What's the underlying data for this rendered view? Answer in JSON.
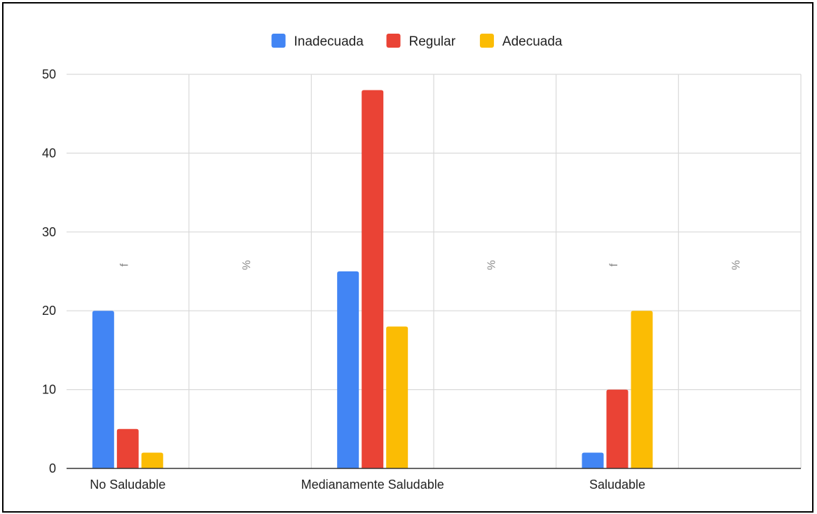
{
  "chart_data": {
    "type": "bar",
    "title": "",
    "xlabel": "",
    "ylabel": "",
    "ylim": [
      0,
      50
    ],
    "yticks": [
      0,
      10,
      20,
      30,
      40,
      50
    ],
    "categories": [
      "No Saludable",
      "",
      "Medianamente Saludable",
      "",
      "Saludable",
      ""
    ],
    "column_labels": [
      "f",
      "%",
      "f",
      "%",
      "f",
      "%"
    ],
    "series": [
      {
        "name": "Inadecuada",
        "color": "#4285f4",
        "values": [
          20,
          null,
          25,
          null,
          2,
          null
        ]
      },
      {
        "name": "Regular",
        "color": "#ea4335",
        "values": [
          5,
          null,
          48,
          null,
          10,
          null
        ]
      },
      {
        "name": "Adecuada",
        "color": "#fbbc04",
        "values": [
          2,
          null,
          18,
          null,
          20,
          null
        ]
      }
    ],
    "grid": true,
    "legend_position": "top-center"
  }
}
